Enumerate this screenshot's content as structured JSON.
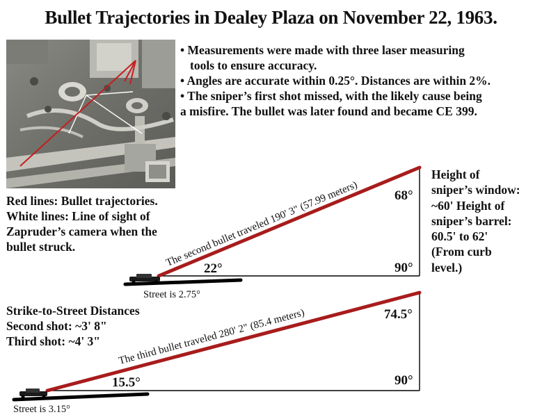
{
  "title": "Bullet Trajectories in Dealey Plaza on November 22, 1963.",
  "notes": [
    "• Measurements were made with three laser measuring",
    "tools to ensure accuracy.",
    "• Angles are accurate within 0.25°. Distances are within 2%.",
    "• The sniper’s first shot missed, with the likely cause being",
    "a misfire. The bullet was later found and became CE 399."
  ],
  "legend": {
    "red": "Red lines: Bullet trajectories.",
    "white_lines": [
      "White lines: Line of sight of",
      "Zapruder’s camera when the",
      "bullet struck."
    ]
  },
  "height_note": [
    "Height of",
    "sniper’s window:",
    "~60' Height of",
    "sniper’s barrel:",
    "60.5' to 62'",
    "(From curb",
    "level.)"
  ],
  "distances": {
    "heading": "Strike-to-Street Distances",
    "second": "Second shot: ~3' 8\"",
    "third": "Third shot: ~4' 3\""
  },
  "triangle_1": {
    "trajectory_label": "The second bullet traveled 190' 3\" (57.99 meters)",
    "base_angle": "22°",
    "top_angle": "68°",
    "right_angle": "90°",
    "street": "Street is 2.75°"
  },
  "triangle_2": {
    "trajectory_label": "The third bullet traveled 280' 2\" (85.4 meters)",
    "base_angle": "15.5°",
    "top_angle": "74.5°",
    "right_angle": "90°",
    "street": "Street is 3.15°"
  },
  "colors": {
    "trajectory": "#a81c1c",
    "street": "#000000",
    "text": "#111111"
  }
}
